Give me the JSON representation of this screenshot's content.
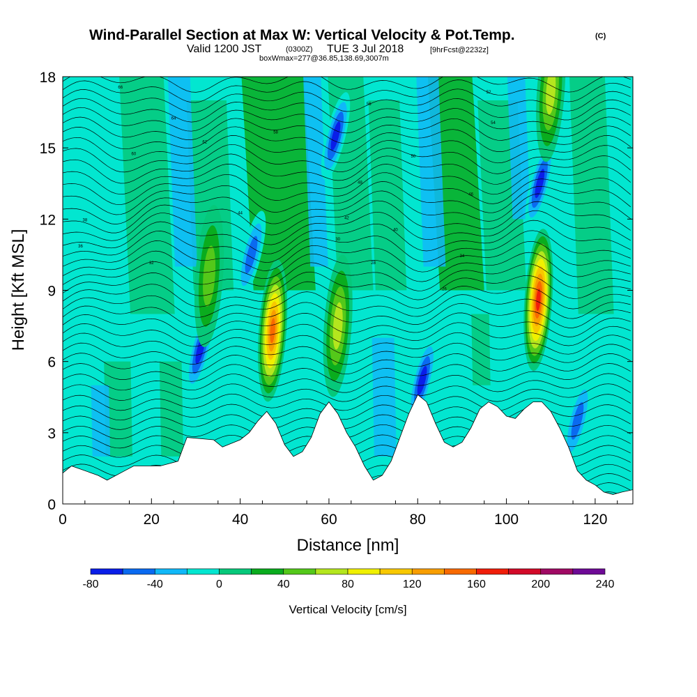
{
  "title": "Wind-Parallel Section at Max W: Vertical Velocity & Pot.Temp.",
  "title_mark": "(C)",
  "subtitle": {
    "prefix": "Valid 1200 JST",
    "utc": "(0300Z)",
    "date": "TUE 3 Jul 2018",
    "fcst": "[9hrFcst@2232z]"
  },
  "box_info": "boxWmax=277@36.85,138.69,3007m",
  "chart_data": {
    "type": "heatmap",
    "xlabel": "Distance [nm]",
    "ylabel": "Height [Kft MSL]",
    "xlim": [
      0,
      128.5
    ],
    "ylim": [
      0,
      18
    ],
    "xticks": [
      0,
      20,
      40,
      60,
      80,
      100,
      120
    ],
    "yticks": [
      0,
      3,
      6,
      9,
      12,
      15,
      18
    ],
    "colorbar": {
      "label": "Vertical Velocity [cm/s]",
      "ticks": [
        -80,
        -40,
        0,
        40,
        80,
        120,
        160,
        200,
        240
      ],
      "levels": [
        -80,
        -60,
        -40,
        -20,
        0,
        20,
        40,
        60,
        80,
        100,
        120,
        140,
        160,
        180,
        200,
        220,
        240
      ],
      "colors": [
        "#0a1ee8",
        "#0a6af0",
        "#10b8f8",
        "#02e6d0",
        "#06c87a",
        "#0aac1e",
        "#54c81a",
        "#b4e61e",
        "#f0f000",
        "#f8c800",
        "#f89e00",
        "#f86a00",
        "#f01e0a",
        "#d20a28",
        "#a00a64",
        "#6e0a96"
      ]
    },
    "background_color": "#02e6d0",
    "terrain": {
      "distance_nm": [
        0,
        2,
        8,
        10,
        14,
        16,
        22,
        26,
        28,
        34,
        36,
        40,
        42,
        44,
        46,
        48,
        50,
        52,
        54,
        56,
        58,
        60,
        62,
        64,
        66,
        68,
        70,
        72,
        74,
        76,
        78,
        80,
        82,
        84,
        86,
        88,
        90,
        92,
        94,
        96,
        98,
        100,
        102,
        104,
        106,
        108,
        110,
        112,
        114,
        116,
        118,
        120,
        122,
        124,
        126,
        128.5
      ],
      "height_kft": [
        1.3,
        1.6,
        1.2,
        1.0,
        1.4,
        1.6,
        1.6,
        1.8,
        2.8,
        2.7,
        2.4,
        2.7,
        3.0,
        3.5,
        3.9,
        3.4,
        2.5,
        2.0,
        2.2,
        2.8,
        3.8,
        4.3,
        3.8,
        3.0,
        2.4,
        1.6,
        1.0,
        1.2,
        1.8,
        2.8,
        3.8,
        4.6,
        4.3,
        3.4,
        2.6,
        2.4,
        2.6,
        3.2,
        4.0,
        4.3,
        4.1,
        3.7,
        3.6,
        4.0,
        4.3,
        4.3,
        3.9,
        3.2,
        2.4,
        1.4,
        1.0,
        0.8,
        0.5,
        0.4,
        0.5,
        0.6
      ]
    },
    "updrafts": [
      {
        "x_nm": 47.3,
        "z_kft": 7.3,
        "w_cms": 160
      },
      {
        "x_nm": 62.0,
        "z_kft": 7.5,
        "w_cms": 80
      },
      {
        "x_nm": 107.2,
        "z_kft": 8.6,
        "w_cms": 190
      },
      {
        "x_nm": 110.0,
        "z_kft": 17.4,
        "w_cms": 80
      },
      {
        "x_nm": 33.0,
        "z_kft": 9.6,
        "w_cms": 60
      }
    ],
    "downdrafts": [
      {
        "x_nm": 31.0,
        "z_kft": 6.5,
        "w_cms": -80
      },
      {
        "x_nm": 107.5,
        "z_kft": 13.5,
        "w_cms": -80
      },
      {
        "x_nm": 61.5,
        "z_kft": 15.5,
        "w_cms": -80
      },
      {
        "x_nm": 81.0,
        "z_kft": 5.2,
        "w_cms": -80
      },
      {
        "x_nm": 42.5,
        "z_kft": 10.5,
        "w_cms": -60
      },
      {
        "x_nm": 116.0,
        "z_kft": 3.5,
        "w_cms": -60
      }
    ],
    "theta_contour_labels": [
      "66",
      "64",
      "62",
      "60",
      "58",
      "56",
      "54",
      "52",
      "50",
      "48",
      "46",
      "44",
      "42",
      "40",
      "38",
      "36",
      "34",
      "32",
      "30",
      "28",
      "26"
    ]
  }
}
